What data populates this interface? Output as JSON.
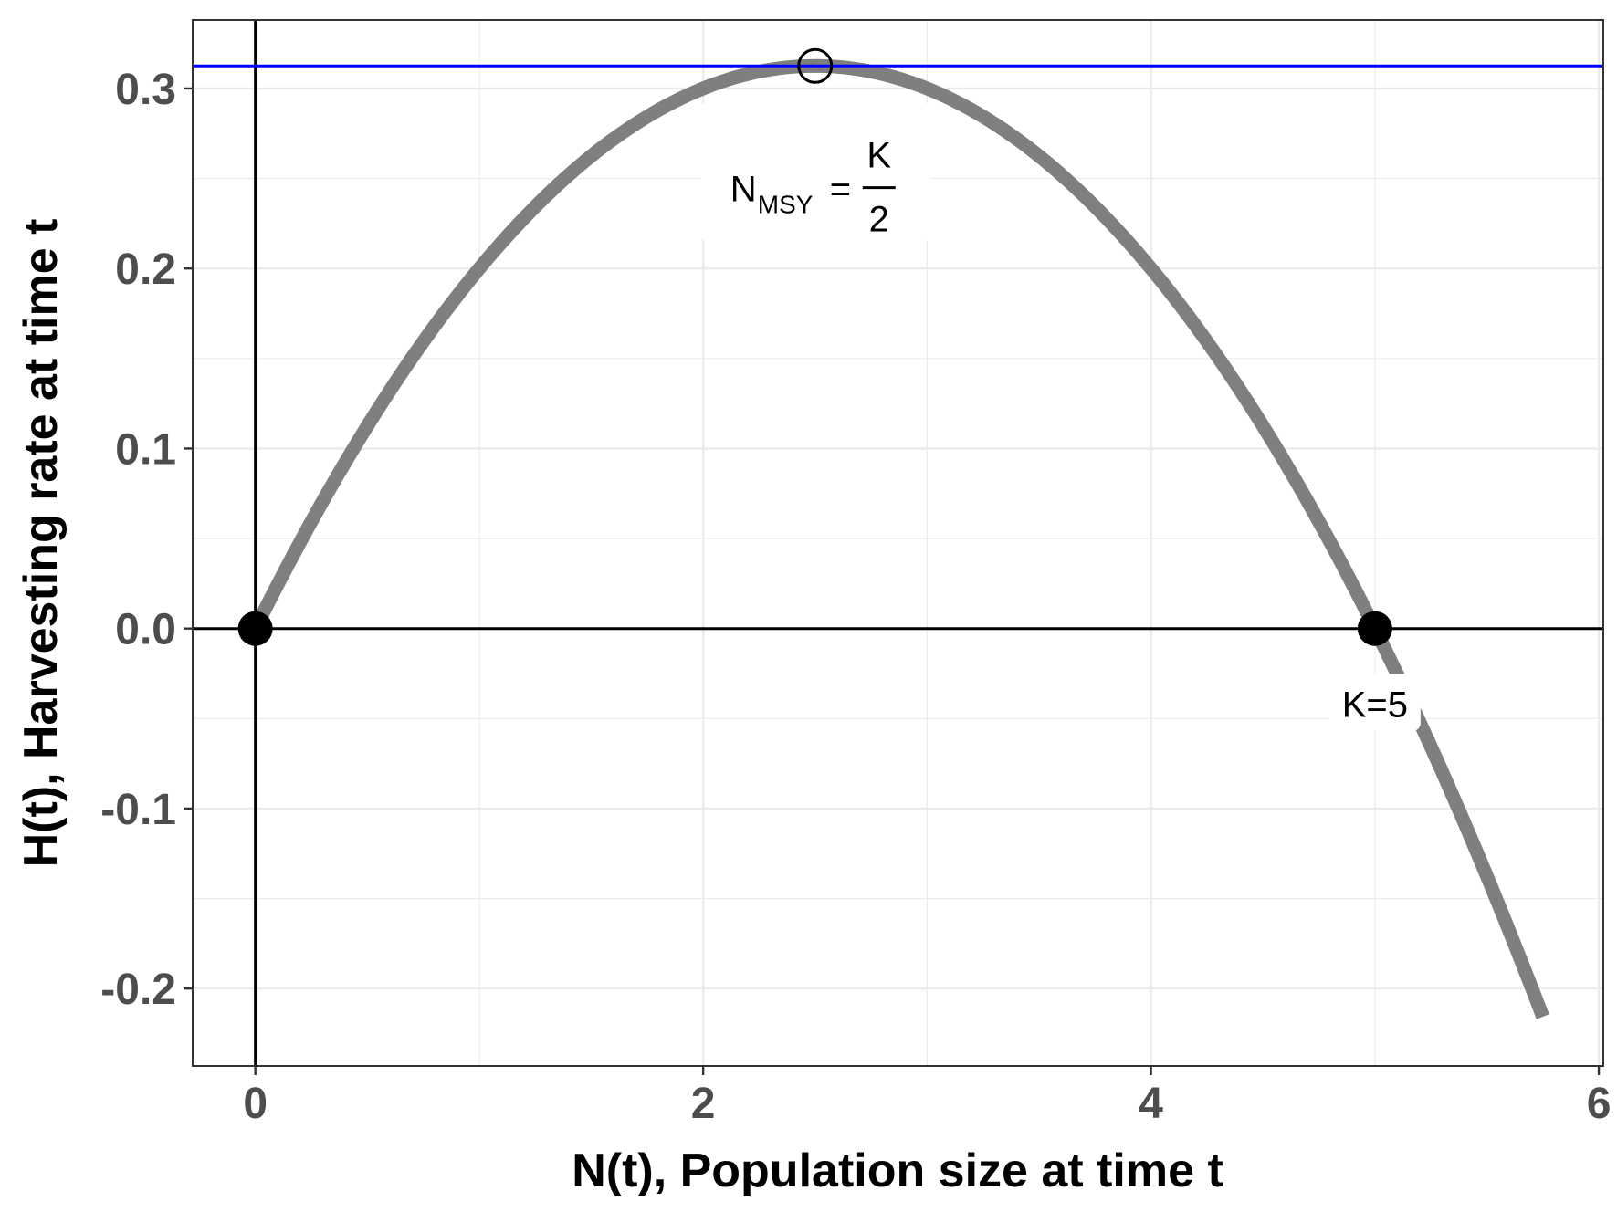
{
  "chart_data": {
    "type": "line",
    "title": "",
    "xlabel": "N(t), Population size at time t",
    "ylabel": "H(t), Harvesting rate at time t",
    "xlim": [
      -0.28,
      6.02
    ],
    "ylim": [
      -0.243,
      0.338
    ],
    "x_ticks": [
      0,
      2,
      4,
      6
    ],
    "x_tick_labels": [
      "0",
      "2",
      "4",
      "6"
    ],
    "y_ticks": [
      -0.2,
      -0.1,
      0.0,
      0.1,
      0.2,
      0.3
    ],
    "y_tick_labels": [
      "-0.2",
      "-0.1",
      "0.0",
      "0.1",
      "0.2",
      "0.3"
    ],
    "grid": true,
    "curve": {
      "formula": "H = r*N*(1 - N/K)",
      "r": 0.25,
      "K": 5,
      "x_start": 0,
      "x_end": 5.75,
      "color": "#7f7f7f"
    },
    "msy_line": {
      "y": 0.3125,
      "color": "#0000ff"
    },
    "reference_lines": {
      "hline_y": 0,
      "vline_x": 0,
      "color": "#000000"
    },
    "points": [
      {
        "name": "origin",
        "x": 0,
        "y": 0,
        "style": "filled"
      },
      {
        "name": "carrying-capacity",
        "x": 5,
        "y": 0,
        "style": "filled"
      },
      {
        "name": "msy",
        "x": 2.5,
        "y": 0.3125,
        "style": "open"
      }
    ],
    "annotations": {
      "msy_label": {
        "main": "N",
        "sub": "MSY",
        "eq": "=",
        "numerator": "K",
        "denominator": "2",
        "x": 2.5,
        "y": 0.25
      },
      "k_label": {
        "text": "K=5",
        "x": 5,
        "y": -0.042
      }
    }
  }
}
